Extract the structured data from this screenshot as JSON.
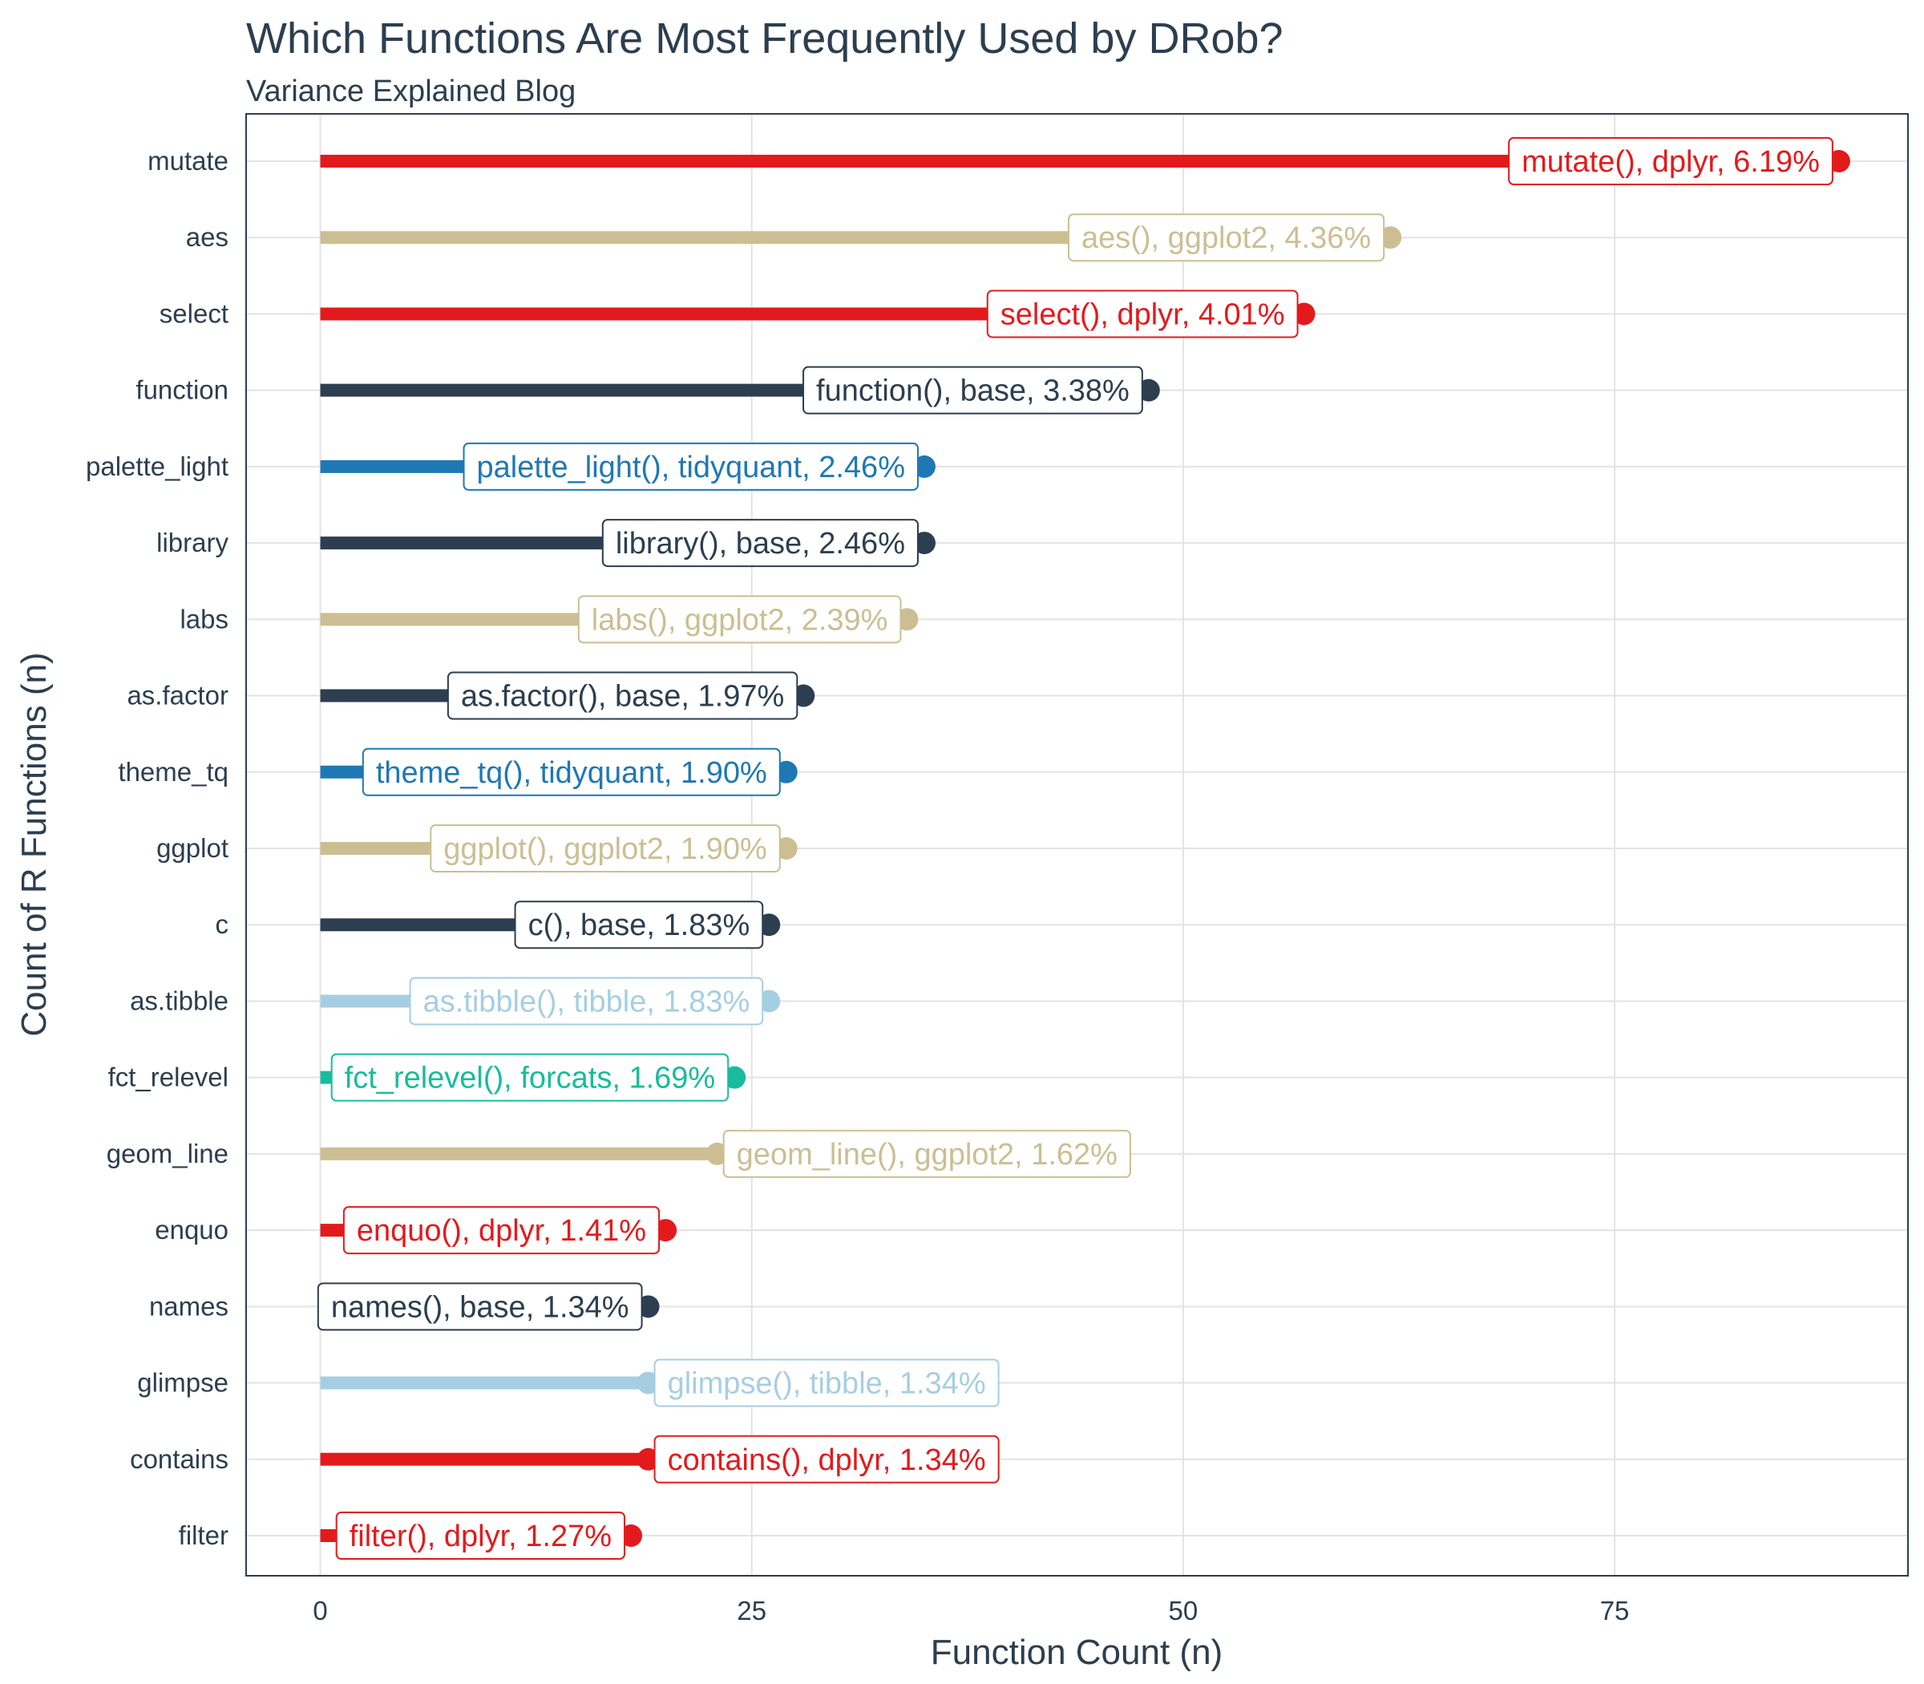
{
  "chart_data": {
    "type": "bar",
    "title": "Which Functions Are Most Frequently Used by DRob?",
    "subtitle": "Variance Explained Blog",
    "xlabel": "Function Count (n)",
    "ylabel": "Count of R Functions (n)",
    "xlim": [
      -4.3,
      92
    ],
    "xticks": [
      0,
      25,
      50,
      75
    ],
    "grid": true,
    "legend": "none",
    "categories": [
      "mutate",
      "aes",
      "select",
      "function",
      "palette_light",
      "library",
      "labs",
      "as.factor",
      "theme_tq",
      "ggplot",
      "c",
      "as.tibble",
      "fct_relevel",
      "geom_line",
      "enquo",
      "names",
      "glimpse",
      "contains",
      "filter"
    ],
    "values": [
      88,
      62,
      57,
      48,
      35,
      35,
      34,
      28,
      27,
      27,
      26,
      26,
      24,
      23,
      20,
      19,
      19,
      19,
      18
    ],
    "packages": [
      "dplyr",
      "ggplot2",
      "dplyr",
      "base",
      "tidyquant",
      "base",
      "ggplot2",
      "base",
      "tidyquant",
      "ggplot2",
      "base",
      "tibble",
      "forcats",
      "ggplot2",
      "dplyr",
      "base",
      "tibble",
      "dplyr",
      "dplyr"
    ],
    "labels": [
      "mutate(), dplyr, 6.19%",
      "aes(), ggplot2, 4.36%",
      "select(), dplyr, 4.01%",
      "function(), base, 3.38%",
      "palette_light(), tidyquant, 2.46%",
      "library(), base, 2.46%",
      "labs(), ggplot2, 2.39%",
      "as.factor(), base, 1.97%",
      "theme_tq(), tidyquant, 1.90%",
      "ggplot(), ggplot2, 1.90%",
      "c(), base, 1.83%",
      "as.tibble(), tibble, 1.83%",
      "fct_relevel(), forcats, 1.69%",
      "geom_line(), ggplot2, 1.62%",
      "enquo(), dplyr, 1.41%",
      "names(), base, 1.34%",
      "glimpse(), tibble, 1.34%",
      "contains(), dplyr, 1.34%",
      "filter(), dplyr, 1.27%"
    ],
    "package_colors": {
      "dplyr": "#e31a1c",
      "ggplot2": "#ccbe93",
      "base": "#2c3e50",
      "tidyquant": "#1f78b4",
      "tibble": "#a6cee3",
      "forcats": "#18bc9c"
    }
  }
}
